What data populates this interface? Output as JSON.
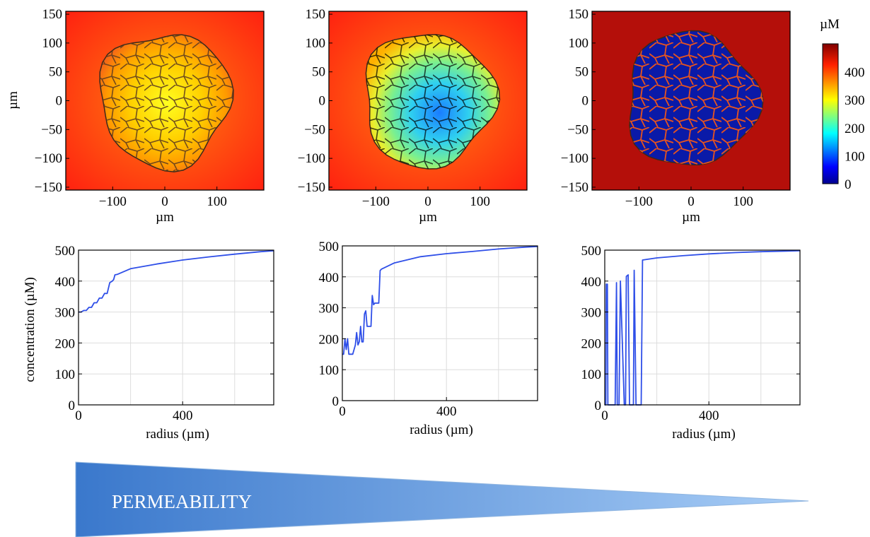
{
  "heatmaps": {
    "type": "heatmap",
    "panels": [
      {
        "exterior_uM": 480,
        "center_uM": 300,
        "rim_uM": 420
      },
      {
        "exterior_uM": 480,
        "center_uM": 150,
        "rim_uM": 400
      },
      {
        "exterior_uM": 500,
        "center_uM": 0,
        "rim_uM": 0
      }
    ],
    "ylabel": "µm",
    "xlabel": "µm",
    "xticks": [
      "−100",
      "0",
      "100"
    ],
    "yticks": [
      "150",
      "100",
      "50",
      "0",
      "−50",
      "−100",
      "−150"
    ],
    "xlim": [
      -190,
      190
    ],
    "ylim": [
      -155,
      155
    ],
    "colorbar": {
      "unit": "µM",
      "ticks": [
        "400",
        "300",
        "200",
        "100",
        "0"
      ],
      "range": [
        0,
        500
      ]
    }
  },
  "chart_data": [
    {
      "type": "line",
      "ylabel": "concentration (µM)",
      "xlabel": "radius (µm)",
      "xlim": [
        0,
        750
      ],
      "ylim": [
        0,
        500
      ],
      "xticks": [
        "0",
        "400"
      ],
      "yticks": [
        "0",
        "100",
        "200",
        "300",
        "400",
        "500"
      ],
      "grid": true,
      "x": [
        0,
        10,
        20,
        30,
        40,
        50,
        60,
        70,
        80,
        90,
        100,
        110,
        120,
        130,
        135,
        140,
        150,
        200,
        300,
        400,
        500,
        600,
        700,
        750
      ],
      "y": [
        300,
        300,
        305,
        305,
        315,
        315,
        330,
        330,
        345,
        345,
        360,
        360,
        395,
        400,
        405,
        420,
        422,
        440,
        455,
        468,
        478,
        487,
        495,
        498
      ]
    },
    {
      "type": "line",
      "xlabel": "radius (µm)",
      "xlim": [
        0,
        750
      ],
      "ylim": [
        0,
        500
      ],
      "xticks": [
        "0",
        "400"
      ],
      "yticks": [
        "0",
        "100",
        "200",
        "300",
        "400",
        "500"
      ],
      "grid": true,
      "x": [
        0,
        5,
        10,
        15,
        20,
        25,
        30,
        40,
        50,
        55,
        60,
        65,
        70,
        75,
        80,
        85,
        90,
        95,
        100,
        105,
        110,
        115,
        120,
        125,
        130,
        135,
        140,
        145,
        150,
        200,
        300,
        400,
        500,
        600,
        700,
        750
      ],
      "y": [
        150,
        150,
        200,
        165,
        200,
        150,
        150,
        150,
        180,
        220,
        180,
        190,
        240,
        190,
        190,
        280,
        290,
        240,
        240,
        240,
        240,
        340,
        310,
        315,
        315,
        315,
        315,
        420,
        425,
        445,
        465,
        475,
        482,
        490,
        496,
        498
      ]
    },
    {
      "type": "line",
      "xlabel": "radius (µm)",
      "xlim": [
        0,
        750
      ],
      "ylim": [
        0,
        500
      ],
      "xticks": [
        "0",
        "400"
      ],
      "yticks": [
        "0",
        "100",
        "200",
        "300",
        "400",
        "500"
      ],
      "grid": true,
      "x": [
        0,
        4,
        6,
        10,
        12,
        20,
        25,
        40,
        45,
        48,
        55,
        60,
        75,
        80,
        83,
        90,
        95,
        105,
        110,
        113,
        120,
        125,
        128,
        135,
        140,
        145,
        200,
        300,
        400,
        500,
        600,
        700,
        750
      ],
      "y": [
        0,
        0,
        390,
        390,
        0,
        0,
        0,
        0,
        395,
        0,
        0,
        400,
        0,
        0,
        415,
        420,
        0,
        0,
        0,
        435,
        0,
        0,
        0,
        0,
        0,
        468,
        475,
        482,
        488,
        492,
        495,
        497,
        498
      ]
    }
  ],
  "footer": {
    "arrow_label": "PERMEABILITY"
  },
  "colors": {
    "line": "#2f4fe8",
    "arrow_start": "#3d7ccc",
    "arrow_end": "#9cc3f3"
  }
}
